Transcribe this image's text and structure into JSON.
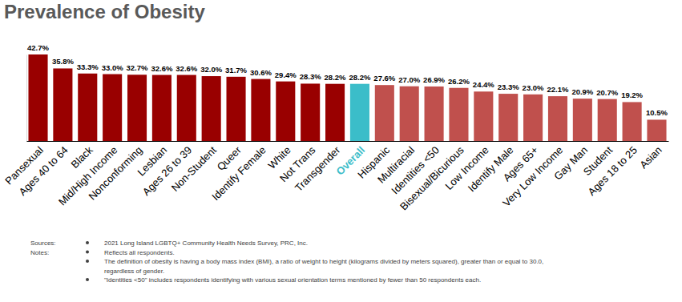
{
  "chart_data": {
    "type": "bar",
    "title": "Prevalence of Obesity",
    "categories": [
      "Pansexual",
      "Ages 40 to 64",
      "Black",
      "Mid/High Income",
      "Nonconforming",
      "Lesbian",
      "Ages 26 to 39",
      "Non-Student",
      "Queer",
      "Identify Female",
      "White",
      "Not Trans",
      "Transgender",
      "Overall",
      "Hispanic",
      "Multiracial",
      "Identities <50",
      "Bisexual/Bicurious",
      "Low Income",
      "Identify Male",
      "Ages 65+",
      "Very Low Income",
      "Gay Man",
      "Student",
      "Ages 18 to 25",
      "Asian"
    ],
    "values": [
      42.7,
      35.8,
      33.3,
      33.0,
      32.7,
      32.6,
      32.6,
      32.0,
      31.7,
      30.6,
      29.4,
      28.3,
      28.2,
      28.2,
      27.6,
      27.0,
      26.9,
      26.2,
      24.4,
      23.3,
      23.0,
      22.1,
      20.9,
      20.7,
      19.2,
      10.5
    ],
    "value_labels": [
      "42.7%",
      "35.8%",
      "33.3%",
      "33.0%",
      "32.7%",
      "32.6%",
      "32.6%",
      "32.0%",
      "31.7%",
      "30.6%",
      "29.4%",
      "28.3%",
      "28.2%",
      "28.2%",
      "27.6%",
      "27.0%",
      "26.9%",
      "26.2%",
      "24.4%",
      "23.3%",
      "23.0%",
      "22.1%",
      "20.9%",
      "20.7%",
      "19.2%",
      "10.5%"
    ],
    "colors": [
      "#990000",
      "#990000",
      "#990000",
      "#990000",
      "#990000",
      "#990000",
      "#990000",
      "#990000",
      "#990000",
      "#990000",
      "#990000",
      "#990000",
      "#990000",
      "#3bbdc9",
      "#c0504d",
      "#c0504d",
      "#c0504d",
      "#c0504d",
      "#c0504d",
      "#c0504d",
      "#c0504d",
      "#c0504d",
      "#c0504d",
      "#c0504d",
      "#c0504d",
      "#c0504d"
    ],
    "ylim": [
      0,
      42.7
    ],
    "data_labels": true,
    "tick_labels": "x",
    "grid": false,
    "annotations": [
      {
        "label": "Sources:",
        "items": [
          [
            "2021 Long Island LGBTQ+ Community Health Needs Survey, PRC, Inc."
          ]
        ]
      },
      {
        "label": "Notes:",
        "items": [
          [
            "Reflects all respondents."
          ],
          [
            "The definition of obesity is having a body mass index (BMI), a ratio of weight to height (kilograms divided by meters squared), greater than or equal to 30.0,",
            "regardless of gender."
          ],
          [
            "\"Identities <50\" includes respondents identifying with various sexual orientation terms mentioned by fewer than 50 respondents each."
          ]
        ]
      }
    ]
  }
}
